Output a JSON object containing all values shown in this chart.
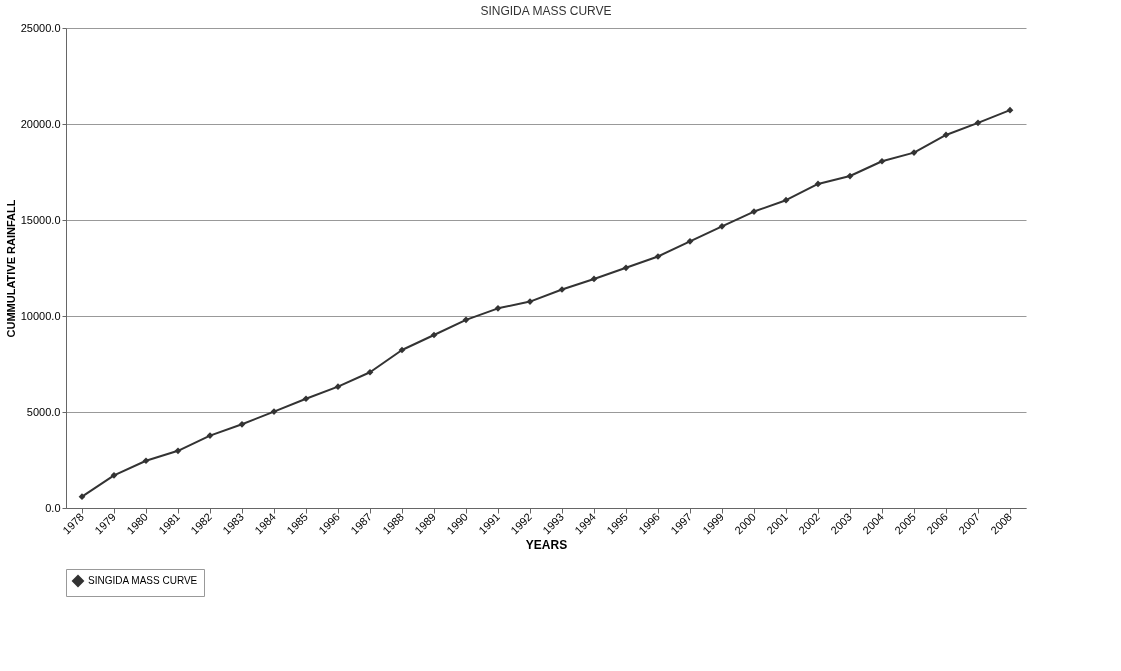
{
  "chart_data": {
    "type": "line",
    "title": "SINGIDA MASS CURVE",
    "xlabel": "YEARS",
    "ylabel": "CUMMULATIVE RAINFALL",
    "categories": [
      "1978",
      "1979",
      "1980",
      "1981",
      "1982",
      "1983",
      "1984",
      "1985",
      "1996",
      "1987",
      "1988",
      "1989",
      "1990",
      "1991",
      "1992",
      "1993",
      "1994",
      "1995",
      "1996",
      "1997",
      "1999",
      "2000",
      "2001",
      "2002",
      "2003",
      "2004",
      "2005",
      "2006",
      "2007",
      "2008"
    ],
    "series": [
      {
        "name": "SINGIDA MASS CURVE",
        "color": "#333333",
        "values": [
          590,
          1700,
          2460,
          2980,
          3770,
          4360,
          5020,
          5690,
          6320,
          7070,
          8230,
          9010,
          9800,
          10400,
          10750,
          11380,
          11930,
          12510,
          13100,
          13890,
          14670,
          15440,
          16030,
          16880,
          17290,
          18060,
          18510,
          19430,
          20060,
          20720
        ]
      }
    ],
    "ylim": [
      0,
      25000
    ],
    "yticks": [
      {
        "value": 0,
        "label": "0.0"
      },
      {
        "value": 5000,
        "label": "5000.0"
      },
      {
        "value": 10000,
        "label": "10000.0"
      },
      {
        "value": 15000,
        "label": "15000.0"
      },
      {
        "value": 20000,
        "label": "20000.0"
      },
      {
        "value": 25000,
        "label": "25000.0"
      }
    ],
    "grid": "y",
    "legend": "bottom",
    "marker": "diamond",
    "line_style": "solid"
  }
}
